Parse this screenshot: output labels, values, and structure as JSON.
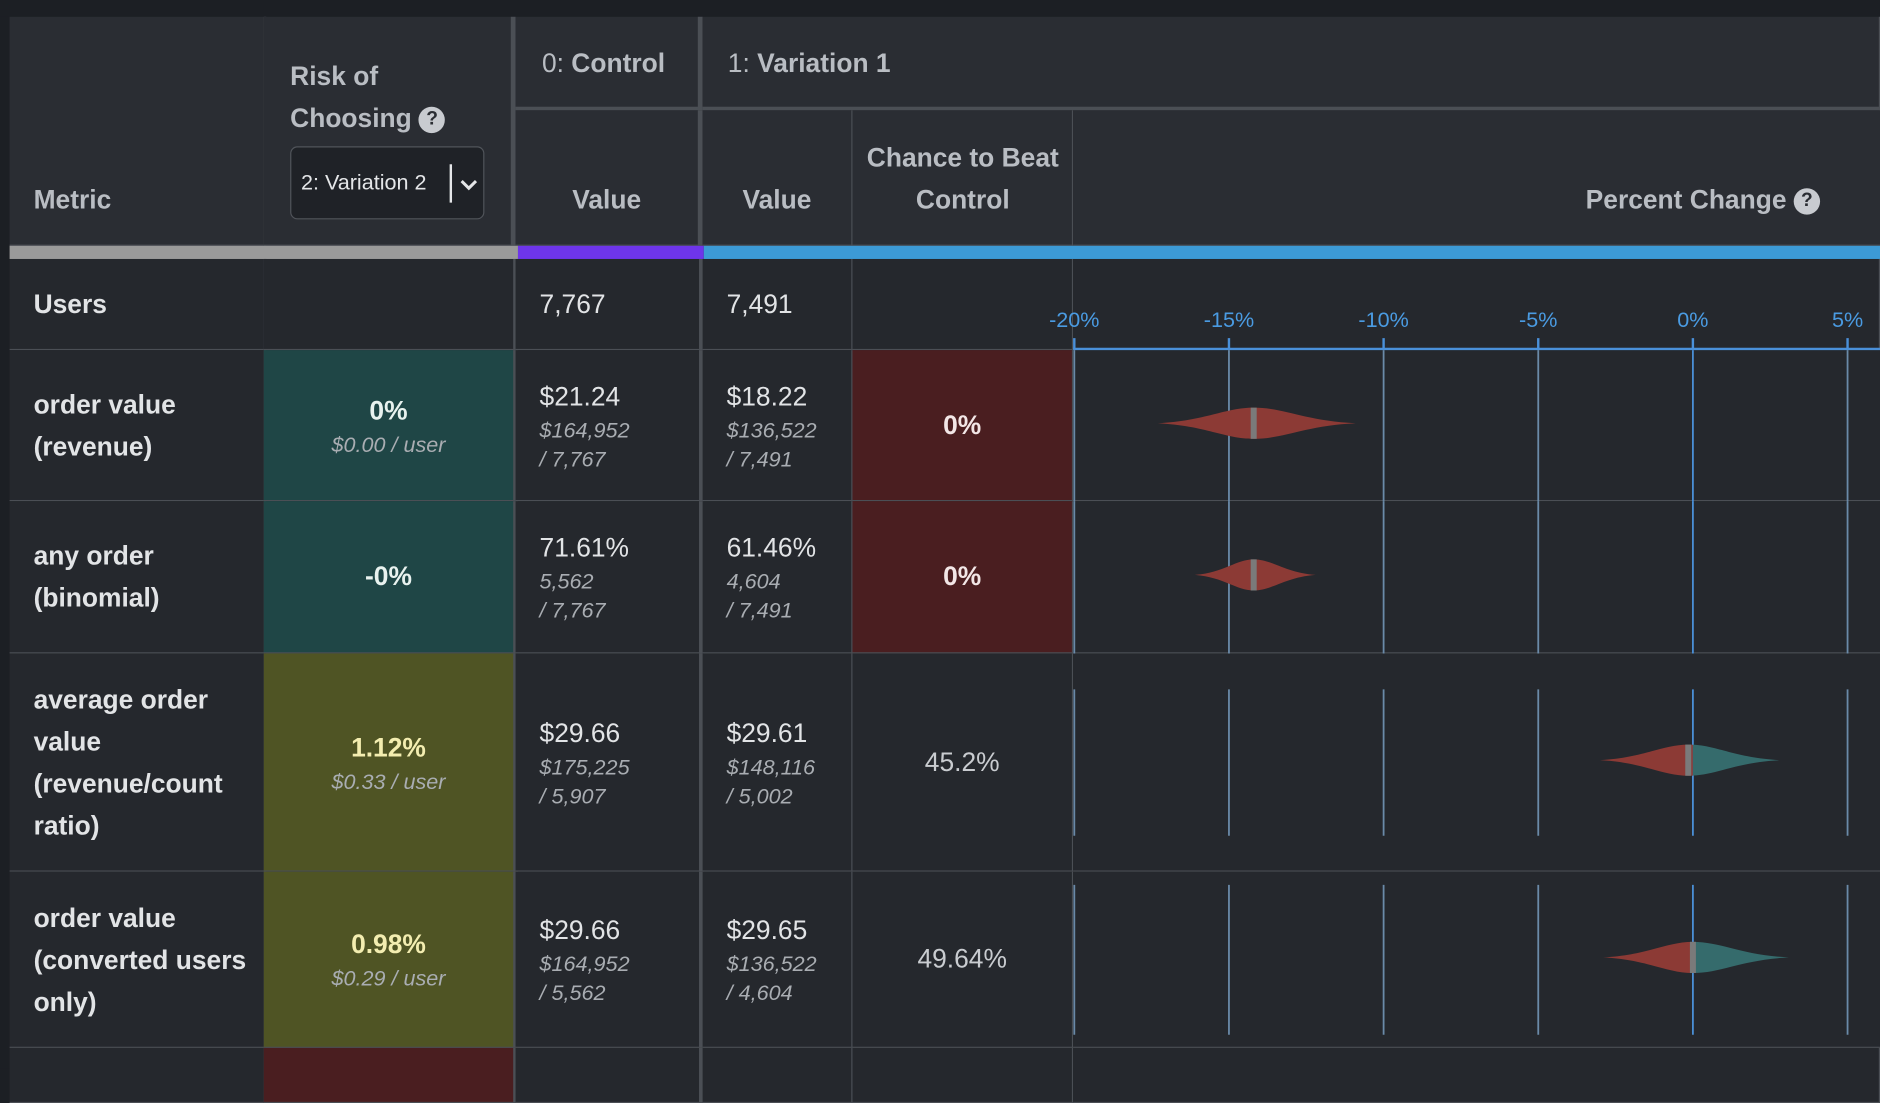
{
  "header": {
    "metric": "Metric",
    "risk_title": "Risk of Choosing",
    "risk_select": "2: Variation 2",
    "control": {
      "index": "0:",
      "name": "Control"
    },
    "variation": {
      "index": "1:",
      "name": "Variation 1"
    },
    "value": "Value",
    "chance": "Chance to Beat Control",
    "percent_change": "Percent Change"
  },
  "users": {
    "label": "Users",
    "control": "7,767",
    "variation": "7,491"
  },
  "axis": {
    "xlim": [
      -20,
      6.05
    ],
    "xticks": [
      {
        "value": -20,
        "label": "-20%"
      },
      {
        "value": -15,
        "label": "-15%"
      },
      {
        "value": -10,
        "label": "-10%"
      },
      {
        "value": -5,
        "label": "-5%"
      },
      {
        "value": 0,
        "label": "0%"
      },
      {
        "value": 5,
        "label": "5%"
      }
    ]
  },
  "rows": [
    {
      "metric": "order value (revenue)",
      "risk": "0%",
      "risk_per_user": "$0.00 / user",
      "control_value": "$21.24",
      "control_num": "$164,952",
      "control_den": "/ 7,767",
      "variation_value": "$18.22",
      "variation_num": "$136,522",
      "variation_den": "/ 7,491",
      "chance": "0%",
      "violin": {
        "low": -17.3,
        "mid": -14.2,
        "high": -10.9
      }
    },
    {
      "metric": "any order (binomial)",
      "risk": "-0%",
      "risk_per_user": null,
      "control_value": "71.61%",
      "control_num": "5,562",
      "control_den": "/ 7,767",
      "variation_value": "61.46%",
      "variation_num": "4,604",
      "variation_den": "/ 7,491",
      "chance": "0%",
      "violin": {
        "low": -16.1,
        "mid": -14.2,
        "high": -12.2
      }
    },
    {
      "metric": "average order value (revenue/count ratio)",
      "risk": "1.12%",
      "risk_per_user": "$0.33 / user",
      "control_value": "$29.66",
      "control_num": "$175,225",
      "control_den": "/ 5,907",
      "variation_value": "$29.61",
      "variation_num": "$148,116",
      "variation_den": "/ 5,002",
      "chance": "45.2%",
      "violin": {
        "low": -3.0,
        "mid": -0.15,
        "high": 2.8
      }
    },
    {
      "metric": "order value (converted users only)",
      "risk": "0.98%",
      "risk_per_user": "$0.29 / user",
      "control_value": "$29.66",
      "control_num": "$164,952",
      "control_den": "/ 5,562",
      "variation_value": "$29.65",
      "variation_num": "$136,522",
      "variation_den": "/ 4,604",
      "chance": "49.64%",
      "violin": {
        "low": -2.9,
        "mid": 0.0,
        "high": 3.1
      }
    }
  ]
}
